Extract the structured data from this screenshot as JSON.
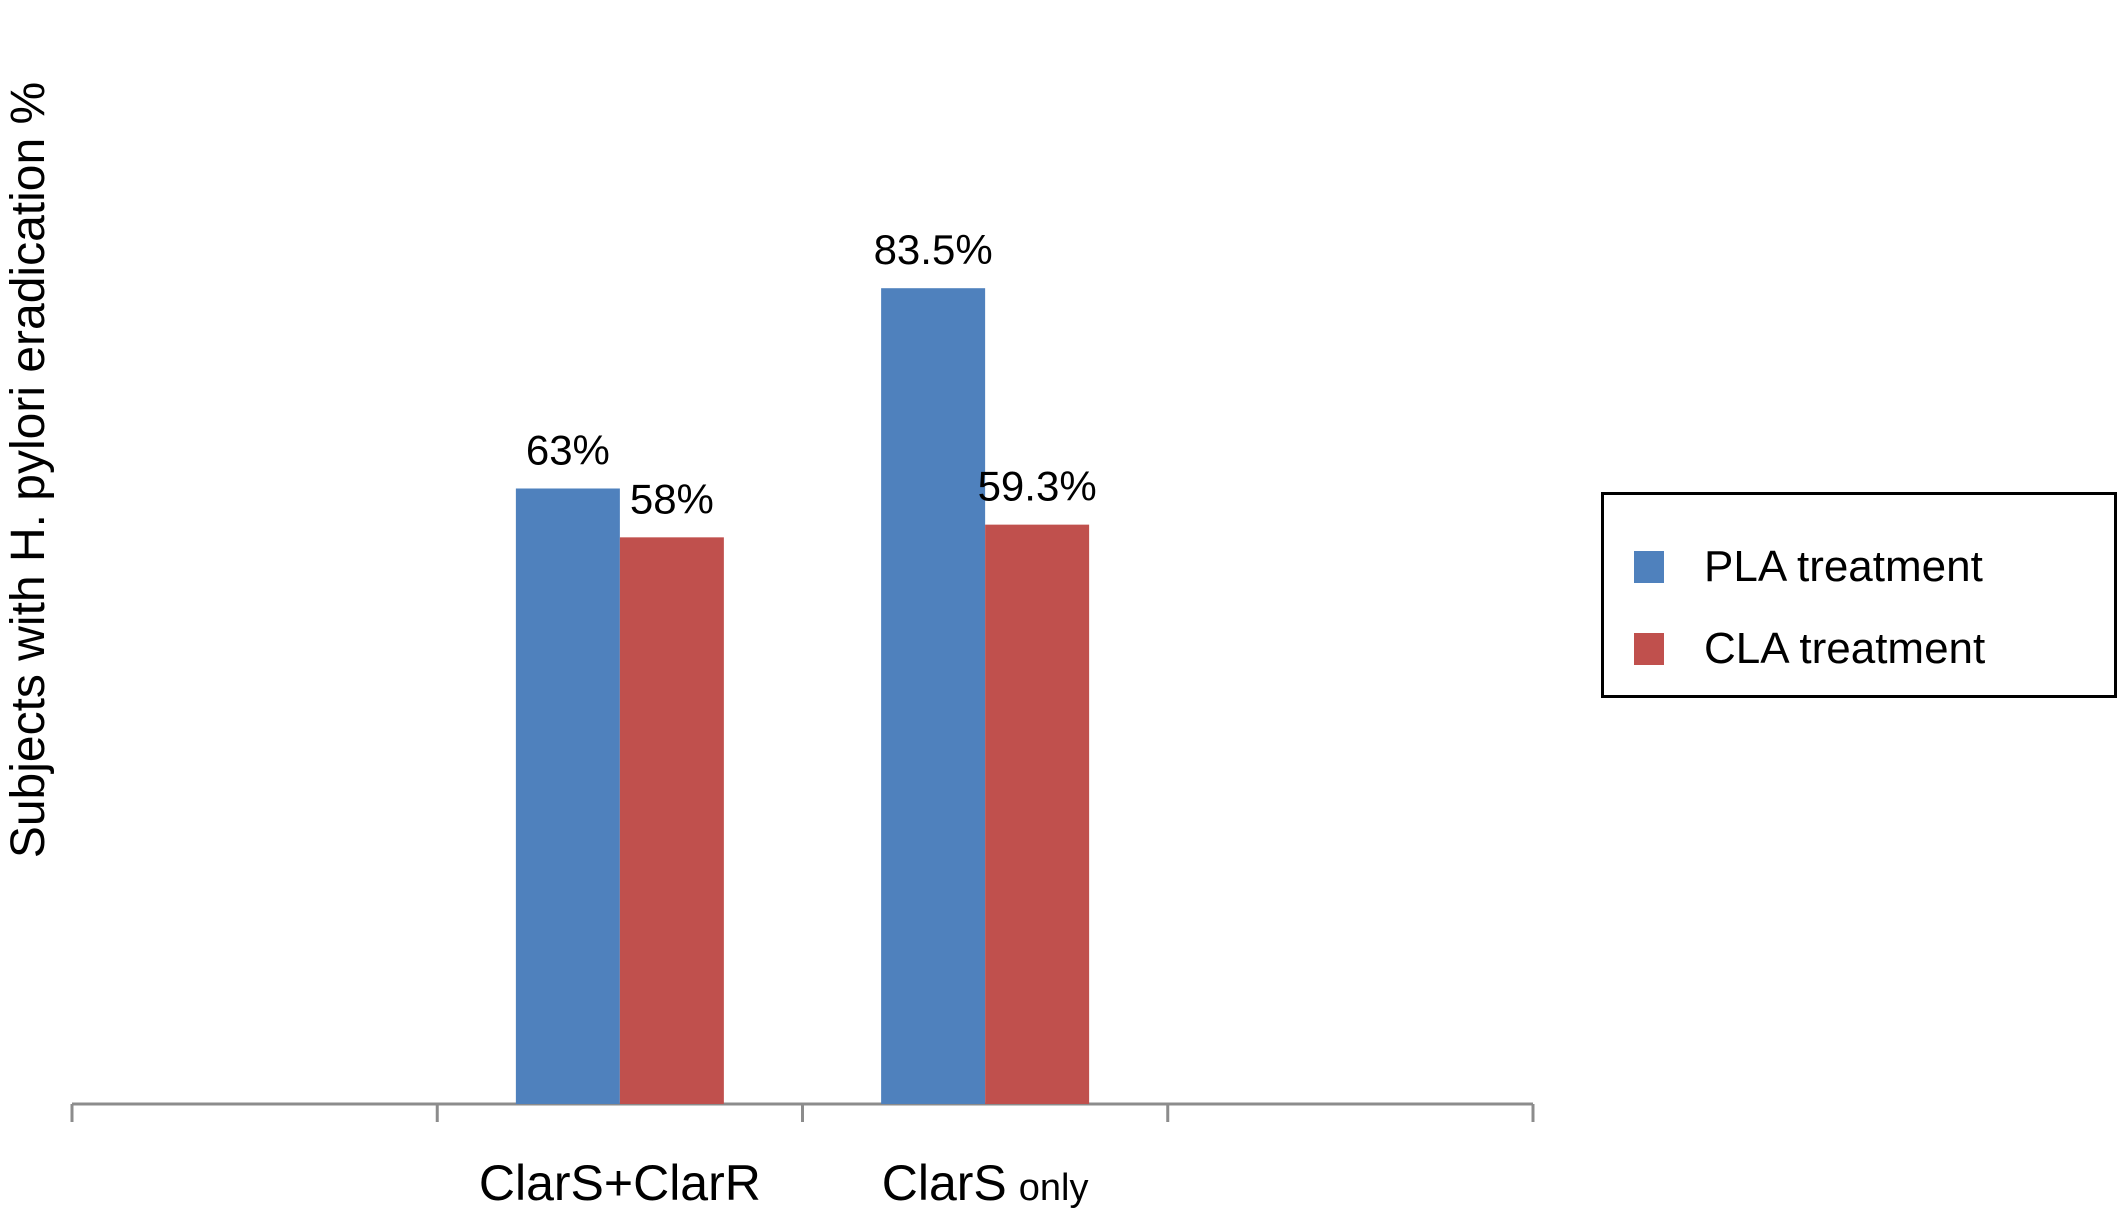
{
  "chart_data": {
    "type": "bar",
    "title": "",
    "xlabel": "",
    "ylabel": "Subjects with H. pylori eradication %",
    "ylim": [
      0,
      100
    ],
    "grid": false,
    "legend_position": "right",
    "categories": [
      {
        "main": "ClarS+ClarR",
        "suffix": ""
      },
      {
        "main": "ClarS",
        "suffix": "only"
      }
    ],
    "category_slots": 4,
    "category_slot_index": [
      1,
      2
    ],
    "series": [
      {
        "name": "PLA treatment",
        "color": "#4F81BD",
        "values": [
          63,
          83.5
        ],
        "data_labels": [
          "63%",
          "83.5%"
        ]
      },
      {
        "name": "CLA treatment",
        "color": "#C0504D",
        "values": [
          58,
          59.3
        ],
        "data_labels": [
          "58%",
          "59.3%"
        ]
      }
    ]
  }
}
